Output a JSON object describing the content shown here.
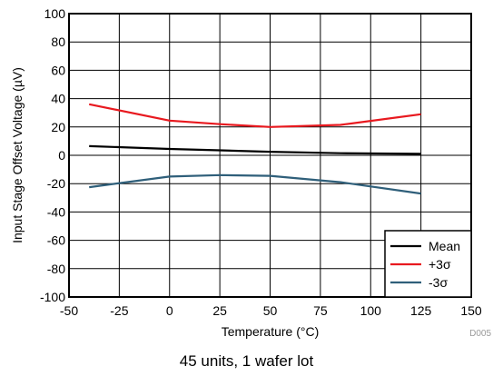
{
  "caption": "45 units, 1 wafer lot",
  "chart_id": "D005",
  "chart_data": {
    "type": "line",
    "title": "",
    "xlabel": "Temperature (°C)",
    "ylabel": "Input Stage Offset Voltage (µV)",
    "xlim": [
      -50,
      150
    ],
    "ylim": [
      -100,
      100
    ],
    "xticks": [
      -50,
      -25,
      0,
      25,
      50,
      75,
      100,
      125,
      150
    ],
    "yticks": [
      -100,
      -80,
      -60,
      -40,
      -20,
      0,
      20,
      40,
      60,
      80,
      100
    ],
    "grid": true,
    "legend_position": "bottom-right",
    "series": [
      {
        "name": "Mean",
        "color": "#000000",
        "points": [
          [
            -40,
            6.5
          ],
          [
            0,
            4.5
          ],
          [
            25,
            3.5
          ],
          [
            50,
            2.5
          ],
          [
            85,
            1.5
          ],
          [
            125,
            1
          ]
        ]
      },
      {
        "name": "+3σ",
        "color": "#e8191f",
        "points": [
          [
            -40,
            36
          ],
          [
            0,
            24.5
          ],
          [
            25,
            22
          ],
          [
            50,
            20
          ],
          [
            85,
            21.5
          ],
          [
            125,
            29
          ]
        ]
      },
      {
        "name": "-3σ",
        "color": "#2f5f7a",
        "points": [
          [
            -40,
            -22.5
          ],
          [
            0,
            -15
          ],
          [
            25,
            -14
          ],
          [
            50,
            -14.5
          ],
          [
            85,
            -19
          ],
          [
            125,
            -27
          ]
        ]
      }
    ]
  }
}
